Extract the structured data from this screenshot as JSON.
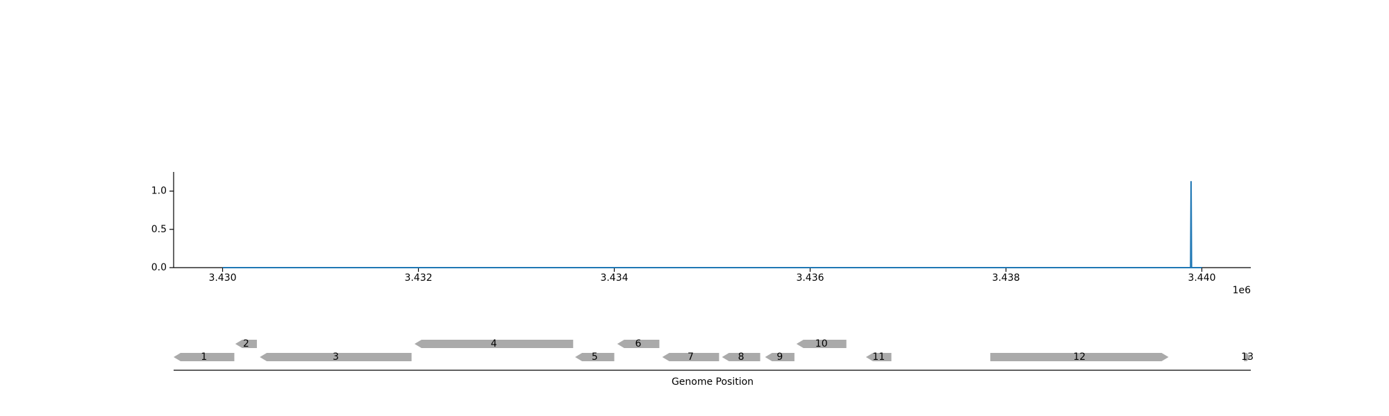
{
  "chart_data": [
    {
      "type": "line",
      "title": "",
      "xlabel": "",
      "ylabel": "",
      "x_offset_label": "1e6",
      "xlim": [
        3429500,
        3440500
      ],
      "ylim": [
        0,
        1.25
      ],
      "x_ticks": [
        3430000,
        3432000,
        3434000,
        3436000,
        3438000,
        3440000
      ],
      "x_tick_labels": [
        "3.430",
        "3.432",
        "3.434",
        "3.436",
        "3.438",
        "3.440"
      ],
      "y_ticks": [
        0,
        0.5,
        1
      ],
      "y_tick_labels": [
        "0.0",
        "0.5",
        "1.0"
      ],
      "line_color": "#1f77b4",
      "series": [
        {
          "x": [
            3430000,
            3439885,
            3439890,
            3439895,
            3440000
          ],
          "values": [
            0,
            0,
            1.13,
            0,
            0
          ]
        }
      ]
    },
    {
      "type": "gene-track",
      "xlabel": "Genome Position",
      "xlim": [
        3429500,
        3440500
      ],
      "gene_color": "#aaaaaa",
      "genes": [
        {
          "label": "1",
          "start": 3429500,
          "end": 3430120,
          "strand": "-",
          "row": 0
        },
        {
          "label": "2",
          "start": 3430130,
          "end": 3430350,
          "strand": "-",
          "row": 1
        },
        {
          "label": "3",
          "start": 3430380,
          "end": 3431930,
          "strand": "-",
          "row": 0
        },
        {
          "label": "4",
          "start": 3431960,
          "end": 3433580,
          "strand": "-",
          "row": 1
        },
        {
          "label": "5",
          "start": 3433600,
          "end": 3434000,
          "strand": "-",
          "row": 0
        },
        {
          "label": "6",
          "start": 3434030,
          "end": 3434460,
          "strand": "-",
          "row": 1
        },
        {
          "label": "7",
          "start": 3434490,
          "end": 3435070,
          "strand": "-",
          "row": 0
        },
        {
          "label": "8",
          "start": 3435100,
          "end": 3435490,
          "strand": "-",
          "row": 0
        },
        {
          "label": "9",
          "start": 3435540,
          "end": 3435840,
          "strand": "-",
          "row": 0
        },
        {
          "label": "10",
          "start": 3435860,
          "end": 3436370,
          "strand": "-",
          "row": 1
        },
        {
          "label": "11",
          "start": 3436570,
          "end": 3436830,
          "strand": "-",
          "row": 0
        },
        {
          "label": "12",
          "start": 3437840,
          "end": 3439660,
          "strand": "+",
          "row": 0
        },
        {
          "label": "13",
          "start": 3440430,
          "end": 3440500,
          "strand": "+",
          "row": 0
        }
      ]
    }
  ]
}
